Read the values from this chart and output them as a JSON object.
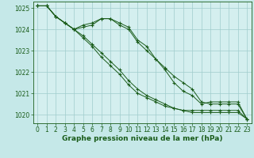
{
  "background_color": "#c5e8e8",
  "plot_bg_color": "#d4efef",
  "grid_color": "#a0cccc",
  "line_color": "#1a5c1a",
  "xlabel": "Graphe pression niveau de la mer (hPa)",
  "xlabel_fontsize": 6.5,
  "tick_fontsize": 5.5,
  "ylim": [
    1019.6,
    1025.3
  ],
  "xlim": [
    -0.5,
    23.5
  ],
  "yticks": [
    1020,
    1021,
    1022,
    1023,
    1024,
    1025
  ],
  "xticks": [
    0,
    1,
    2,
    3,
    4,
    5,
    6,
    7,
    8,
    9,
    10,
    11,
    12,
    13,
    14,
    15,
    16,
    17,
    18,
    19,
    20,
    21,
    22,
    23
  ],
  "series": [
    [
      1025.1,
      1025.1,
      1024.6,
      1024.3,
      1024.0,
      1024.1,
      1024.2,
      1024.5,
      1024.5,
      1024.3,
      1024.1,
      1023.5,
      1023.2,
      1022.6,
      1022.2,
      1021.8,
      1021.5,
      1021.2,
      1020.6,
      1020.5,
      1020.5,
      1020.5,
      1020.5,
      1019.8
    ],
    [
      1025.1,
      1025.1,
      1024.6,
      1024.3,
      1024.0,
      1023.6,
      1023.2,
      1022.7,
      1022.3,
      1021.9,
      1021.4,
      1021.0,
      1020.8,
      1020.6,
      1020.4,
      1020.3,
      1020.2,
      1020.2,
      1020.2,
      1020.2,
      1020.2,
      1020.2,
      1020.2,
      1019.8
    ],
    [
      1025.1,
      1025.1,
      1024.6,
      1024.3,
      1024.0,
      1023.7,
      1023.3,
      1022.9,
      1022.5,
      1022.1,
      1021.6,
      1021.2,
      1020.9,
      1020.7,
      1020.5,
      1020.3,
      1020.2,
      1020.1,
      1020.1,
      1020.1,
      1020.1,
      1020.1,
      1020.1,
      1019.8
    ],
    [
      1025.1,
      1025.1,
      1024.6,
      1024.3,
      1024.0,
      1024.2,
      1024.3,
      1024.5,
      1024.5,
      1024.2,
      1024.0,
      1023.4,
      1023.0,
      1022.6,
      1022.1,
      1021.5,
      1021.1,
      1020.9,
      1020.5,
      1020.6,
      1020.6,
      1020.6,
      1020.6,
      1019.8
    ]
  ]
}
